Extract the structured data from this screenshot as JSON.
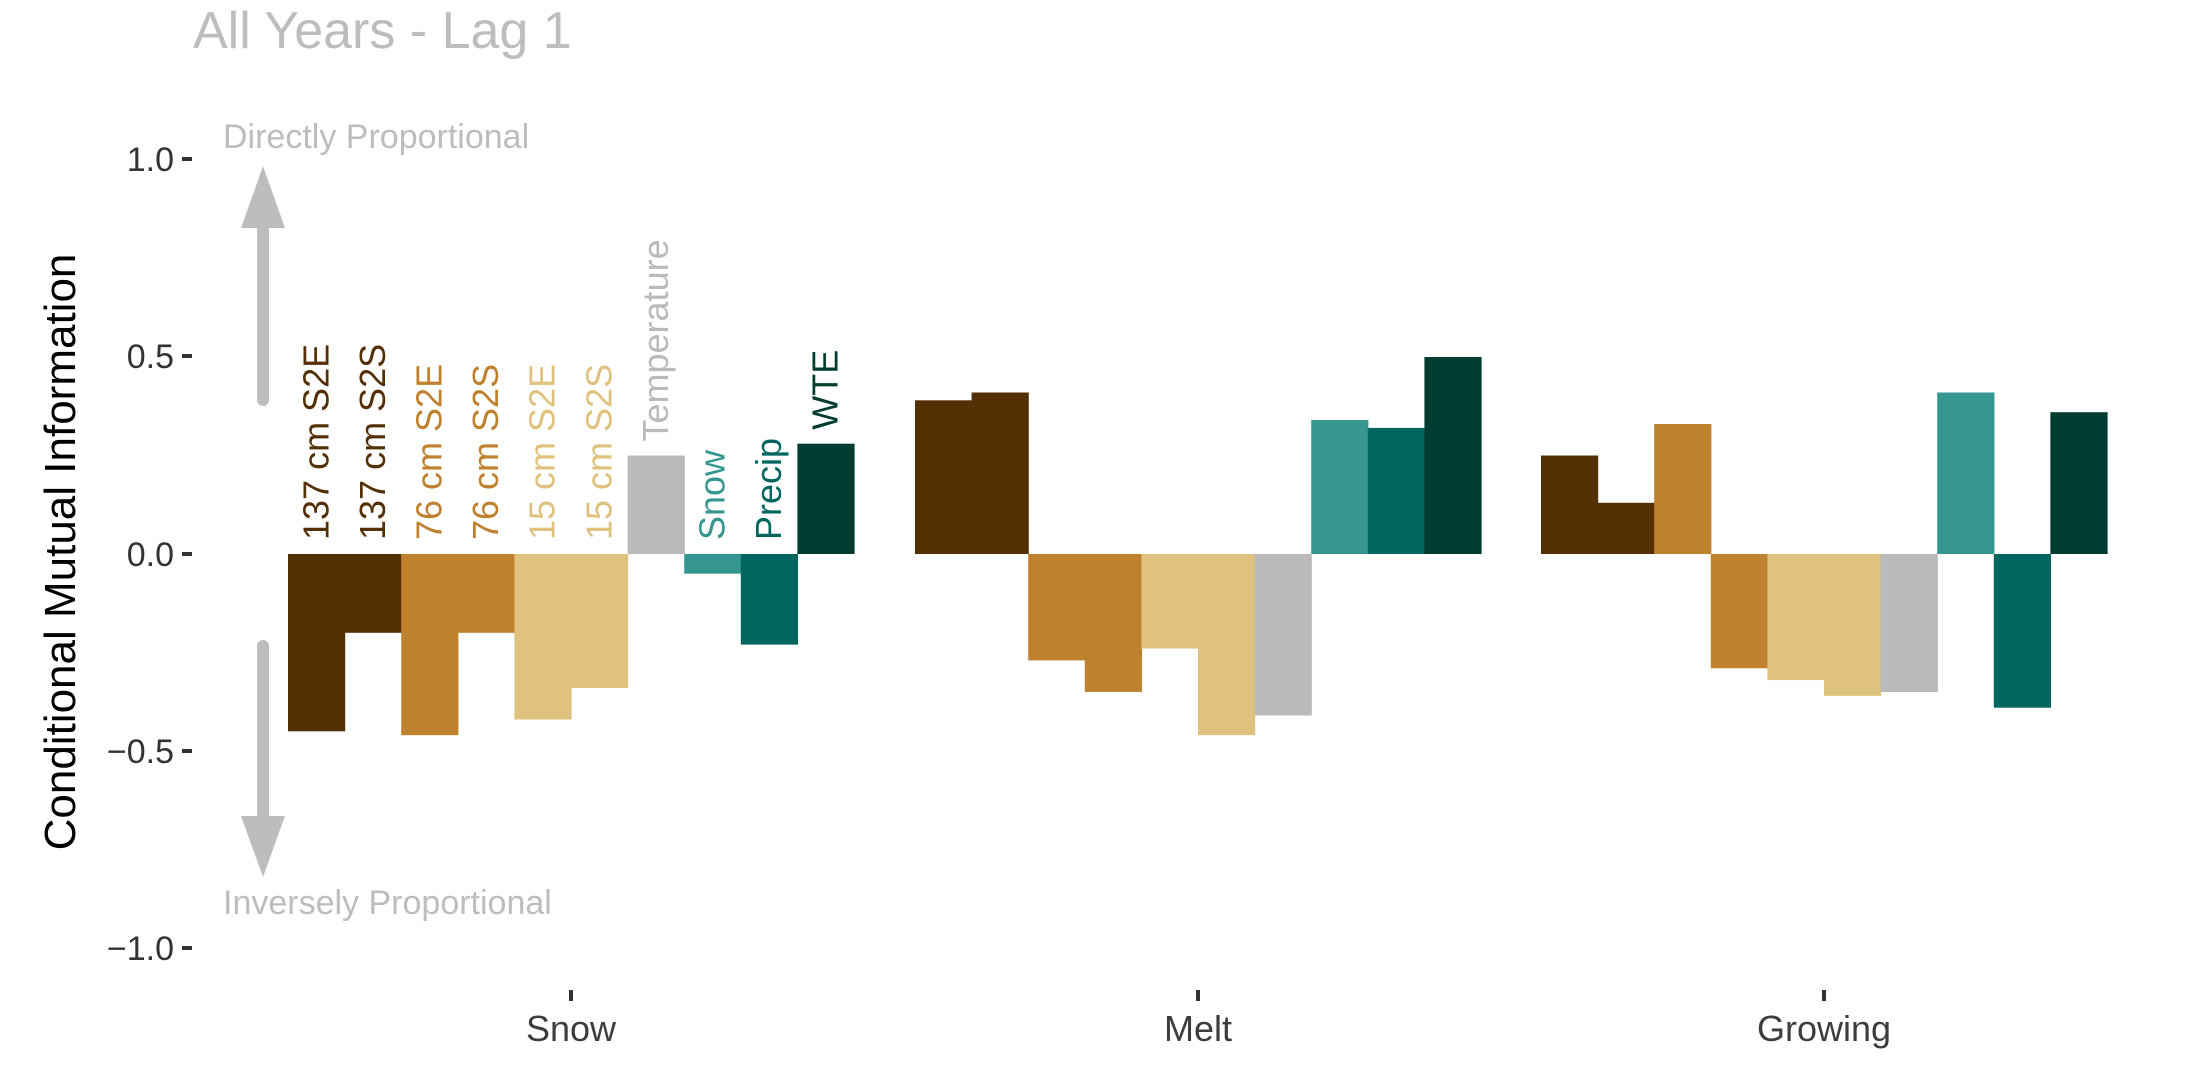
{
  "chart_data": {
    "type": "bar",
    "title": "All Years - Lag 1",
    "ylabel": "Conditional Mutual Information",
    "xlabel": "",
    "ylim": [
      -1.0,
      1.0
    ],
    "yticks": [
      "1.0",
      "0.5",
      "0.0",
      "−0.5",
      "−1.0"
    ],
    "categories": [
      "Snow",
      "Melt",
      "Growing"
    ],
    "annotations": {
      "up": "Directly Proportional",
      "down": "Inversely Proportional"
    },
    "grid": false,
    "series": [
      {
        "name": "137 cm S2E",
        "color": "#543005",
        "values": [
          -0.45,
          0.39,
          0.25
        ]
      },
      {
        "name": "137 cm S2S",
        "color": "#543005",
        "values": [
          -0.2,
          0.41,
          0.13
        ]
      },
      {
        "name": "76 cm S2E",
        "color": "#bf812d",
        "values": [
          -0.46,
          -0.27,
          0.33
        ]
      },
      {
        "name": "76 cm S2S",
        "color": "#bf812d",
        "values": [
          -0.2,
          -0.35,
          -0.29
        ]
      },
      {
        "name": "15 cm S2E",
        "color": "#dfc27d",
        "values": [
          -0.42,
          -0.24,
          -0.32
        ]
      },
      {
        "name": "15 cm S2S",
        "color": "#dfc27d",
        "values": [
          -0.34,
          -0.46,
          -0.36
        ]
      },
      {
        "name": "Temperature",
        "color": "#bababa",
        "values": [
          0.25,
          -0.41,
          -0.35
        ]
      },
      {
        "name": "Snow",
        "color": "#35978f",
        "values": [
          -0.05,
          0.34,
          0.41
        ]
      },
      {
        "name": "Precip",
        "color": "#01665e",
        "values": [
          -0.23,
          0.32,
          -0.39
        ]
      },
      {
        "name": "WTE",
        "color": "#003c30",
        "values": [
          0.28,
          0.5,
          0.36
        ]
      }
    ]
  }
}
